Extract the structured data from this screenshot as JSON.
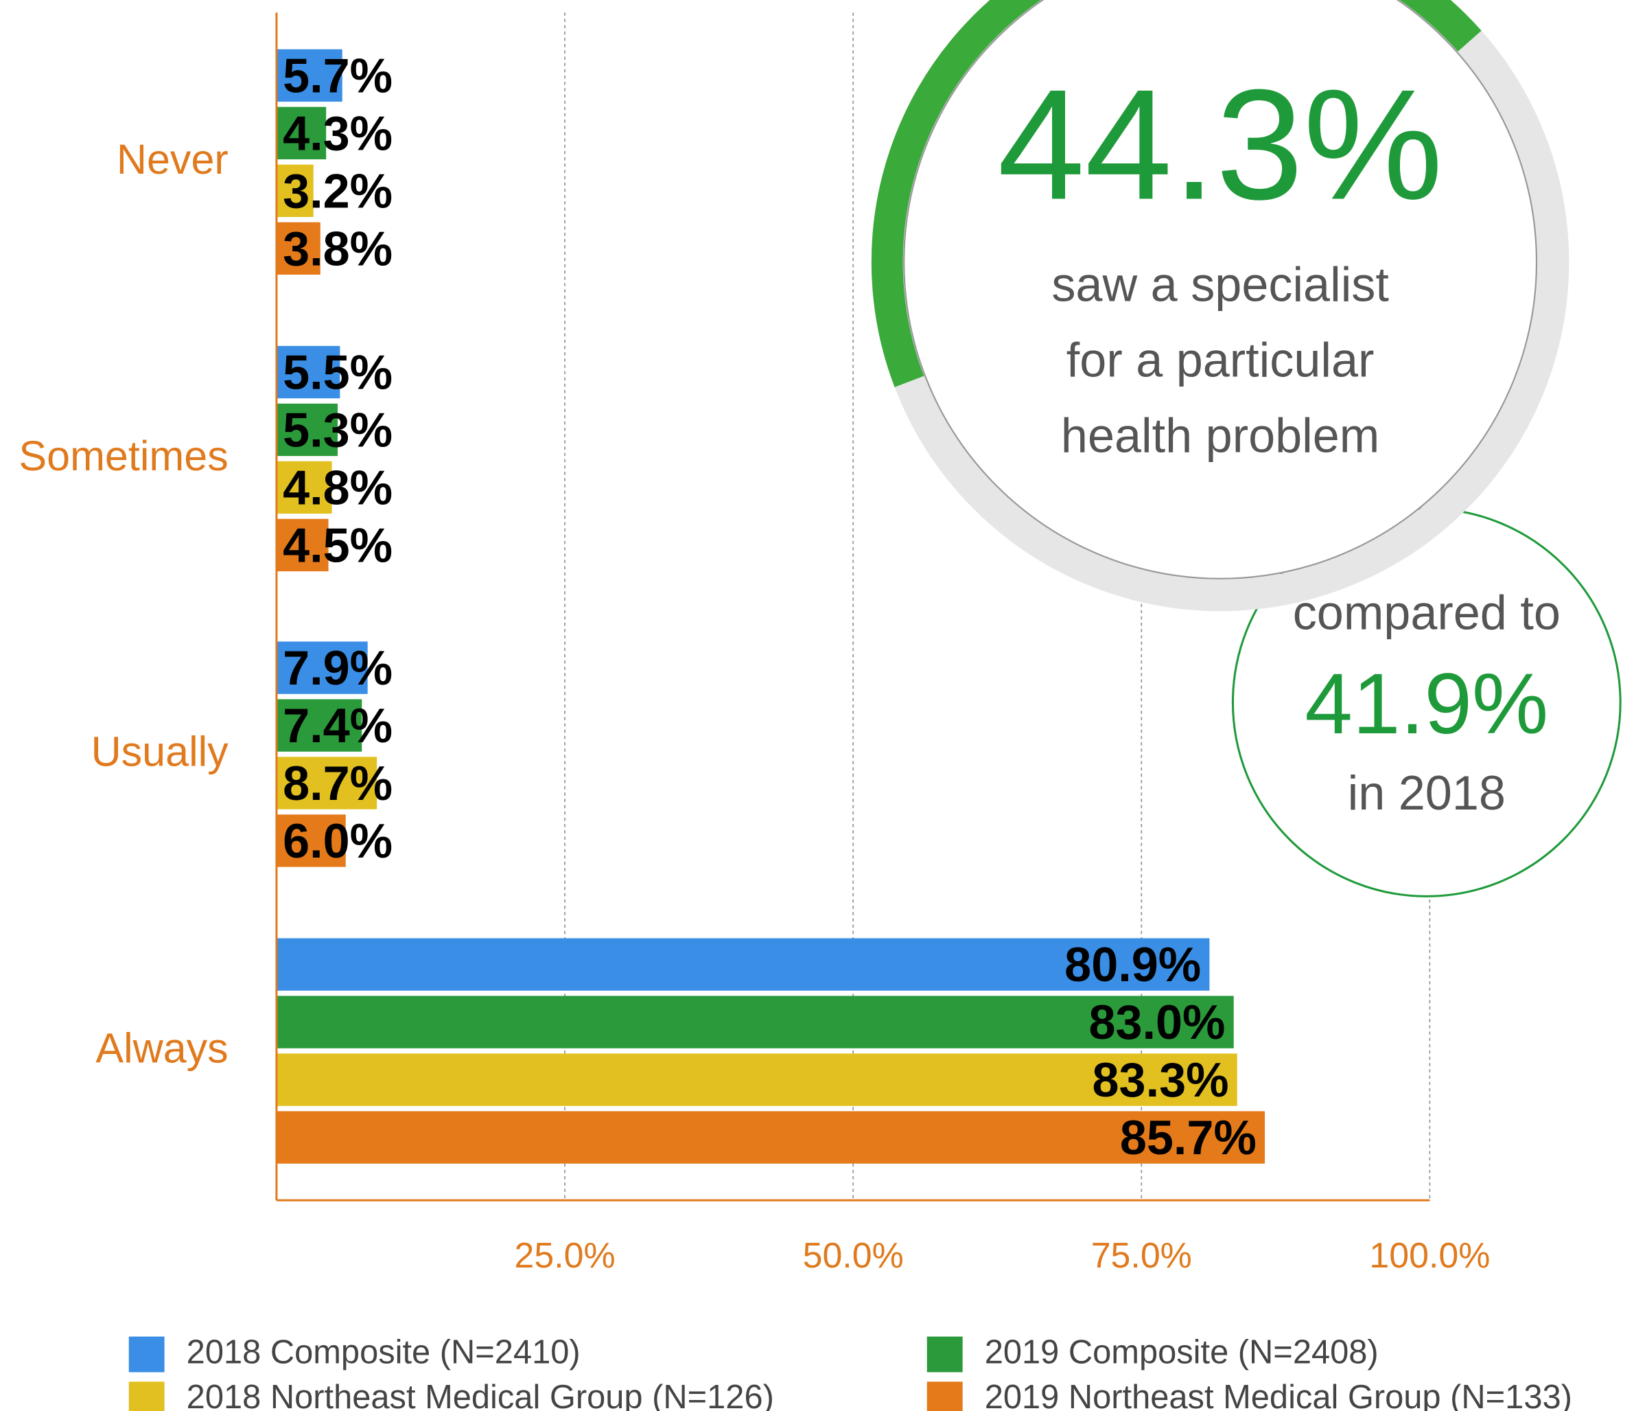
{
  "chart_data": {
    "type": "bar",
    "orientation": "horizontal",
    "categories": [
      "Never",
      "Sometimes",
      "Usually",
      "Always"
    ],
    "series": [
      {
        "name": "2018 Composite (N=2410)",
        "color": "#3a8ee6",
        "values": [
          5.7,
          5.5,
          7.9,
          80.9
        ],
        "value_labels": [
          "5.7%",
          "5.5%",
          "7.9%",
          "80.9%"
        ]
      },
      {
        "name": "2019 Composite (N=2408)",
        "color": "#2a9a3a",
        "values": [
          4.3,
          5.3,
          7.4,
          83.0
        ],
        "value_labels": [
          "4.3%",
          "5.3%",
          "7.4%",
          "83.0%"
        ]
      },
      {
        "name": "2018 Northeast Medical Group (N=126)",
        "color": "#e2c020",
        "values": [
          3.2,
          4.8,
          8.7,
          83.3
        ],
        "value_labels": [
          "3.2%",
          "4.8%",
          "8.7%",
          "83.3%"
        ]
      },
      {
        "name": "2019 Northeast Medical Group (N=133)",
        "color": "#e57a1a",
        "values": [
          3.8,
          4.5,
          6.0,
          85.7
        ],
        "value_labels": [
          "3.8%",
          "4.5%",
          "6.0%",
          "85.7%"
        ]
      }
    ],
    "xlim": [
      0,
      100
    ],
    "xticks": [
      {
        "value": 25,
        "label": "25.0%"
      },
      {
        "value": 50,
        "label": "50.0%"
      },
      {
        "value": 75,
        "label": "75.0%"
      },
      {
        "value": 100,
        "label": "100.0%"
      }
    ],
    "grid": true,
    "callout": {
      "value": 44.3,
      "value_label": "44.3%",
      "color": "#1f9a3a",
      "text": [
        "saw a specialist",
        "for a particular",
        "health problem"
      ]
    },
    "comparison": {
      "intro": "compared to",
      "value": 41.9,
      "value_label": "41.9%",
      "outro": "in 2018"
    }
  }
}
